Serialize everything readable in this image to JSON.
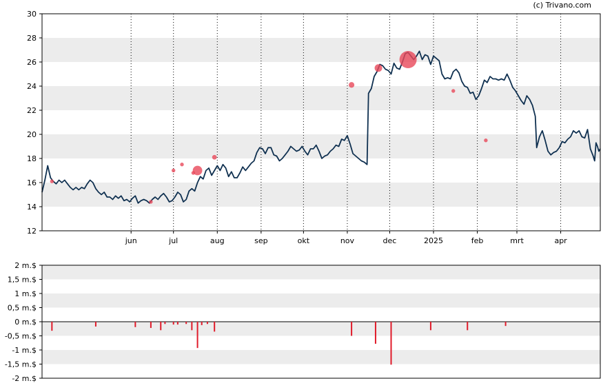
{
  "credit": "(c) Trivano.com",
  "colors": {
    "price_line": "#0f3050",
    "band": "#ececec",
    "insider_marker": "#e8495a",
    "volume_bar": "#e01b2a",
    "grid": "#000000"
  },
  "chart_data": [
    {
      "type": "line",
      "name": "price",
      "y_ticks": [
        "12",
        "14",
        "16",
        "18",
        "20",
        "22",
        "24",
        "26",
        "28",
        "30"
      ],
      "ylim": [
        12,
        30
      ],
      "x_tick_labels": [
        {
          "label": "jun",
          "day": 49
        },
        {
          "label": "jul",
          "day": 79
        },
        {
          "label": "aug",
          "day": 110
        },
        {
          "label": "sep",
          "day": 141
        },
        {
          "label": "okt",
          "day": 171
        },
        {
          "label": "nov",
          "day": 202
        },
        {
          "label": "dec",
          "day": 232
        },
        {
          "label": "2025",
          "day": 263
        },
        {
          "label": "feb",
          "day": 294
        },
        {
          "label": "mrt",
          "day": 322
        },
        {
          "label": "apr",
          "day": 353
        }
      ],
      "xlim": [
        -14,
        381
      ],
      "grid_x": true,
      "bands": [
        [
          14,
          16
        ],
        [
          18,
          20
        ],
        [
          22,
          24
        ],
        [
          26,
          28
        ]
      ],
      "series": [
        {
          "points": [
            [
              -14,
              15.2
            ],
            [
              -12,
              16.2
            ],
            [
              -10,
              17.4
            ],
            [
              -8,
              16.4
            ],
            [
              -6,
              16.1
            ],
            [
              -4,
              15.9
            ],
            [
              -2,
              16.2
            ],
            [
              0,
              16.0
            ],
            [
              2,
              16.2
            ],
            [
              4,
              15.9
            ],
            [
              6,
              15.6
            ],
            [
              8,
              15.4
            ],
            [
              10,
              15.6
            ],
            [
              12,
              15.4
            ],
            [
              14,
              15.6
            ],
            [
              16,
              15.5
            ],
            [
              18,
              15.9
            ],
            [
              20,
              16.2
            ],
            [
              22,
              16.0
            ],
            [
              24,
              15.5
            ],
            [
              26,
              15.2
            ],
            [
              28,
              15.0
            ],
            [
              30,
              15.2
            ],
            [
              32,
              14.8
            ],
            [
              34,
              14.8
            ],
            [
              36,
              14.6
            ],
            [
              38,
              14.9
            ],
            [
              40,
              14.7
            ],
            [
              42,
              14.9
            ],
            [
              44,
              14.5
            ],
            [
              46,
              14.6
            ],
            [
              48,
              14.4
            ],
            [
              50,
              14.7
            ],
            [
              52,
              14.9
            ],
            [
              54,
              14.3
            ],
            [
              56,
              14.5
            ],
            [
              58,
              14.6
            ],
            [
              60,
              14.5
            ],
            [
              62,
              14.3
            ],
            [
              64,
              14.6
            ],
            [
              66,
              14.8
            ],
            [
              68,
              14.6
            ],
            [
              70,
              14.9
            ],
            [
              72,
              15.1
            ],
            [
              74,
              14.8
            ],
            [
              76,
              14.4
            ],
            [
              78,
              14.5
            ],
            [
              80,
              14.8
            ],
            [
              82,
              15.2
            ],
            [
              84,
              15.0
            ],
            [
              86,
              14.4
            ],
            [
              88,
              14.6
            ],
            [
              90,
              15.3
            ],
            [
              92,
              15.5
            ],
            [
              94,
              15.3
            ],
            [
              96,
              16.0
            ],
            [
              98,
              16.5
            ],
            [
              100,
              16.3
            ],
            [
              102,
              17.0
            ],
            [
              104,
              17.2
            ],
            [
              106,
              16.6
            ],
            [
              108,
              17.0
            ],
            [
              110,
              17.4
            ],
            [
              112,
              17.0
            ],
            [
              114,
              17.5
            ],
            [
              116,
              17.2
            ],
            [
              118,
              16.5
            ],
            [
              120,
              16.9
            ],
            [
              122,
              16.4
            ],
            [
              124,
              16.4
            ],
            [
              126,
              16.8
            ],
            [
              128,
              17.3
            ],
            [
              130,
              17.0
            ],
            [
              132,
              17.3
            ],
            [
              134,
              17.6
            ],
            [
              136,
              17.8
            ],
            [
              138,
              18.5
            ],
            [
              140,
              18.9
            ],
            [
              142,
              18.8
            ],
            [
              144,
              18.4
            ],
            [
              146,
              18.9
            ],
            [
              148,
              18.9
            ],
            [
              150,
              18.3
            ],
            [
              152,
              18.2
            ],
            [
              154,
              17.8
            ],
            [
              156,
              18.0
            ],
            [
              158,
              18.3
            ],
            [
              160,
              18.6
            ],
            [
              162,
              19.0
            ],
            [
              164,
              18.8
            ],
            [
              166,
              18.6
            ],
            [
              168,
              18.7
            ],
            [
              170,
              19.0
            ],
            [
              172,
              18.6
            ],
            [
              174,
              18.3
            ],
            [
              176,
              18.8
            ],
            [
              178,
              18.8
            ],
            [
              180,
              19.1
            ],
            [
              182,
              18.6
            ],
            [
              184,
              18.0
            ],
            [
              186,
              18.2
            ],
            [
              188,
              18.3
            ],
            [
              190,
              18.6
            ],
            [
              192,
              18.8
            ],
            [
              194,
              19.1
            ],
            [
              196,
              19.0
            ],
            [
              198,
              19.6
            ],
            [
              200,
              19.5
            ],
            [
              202,
              19.9
            ],
            [
              204,
              19.2
            ],
            [
              206,
              18.4
            ],
            [
              208,
              18.2
            ],
            [
              210,
              18.0
            ],
            [
              212,
              17.8
            ],
            [
              214,
              17.7
            ],
            [
              216,
              17.5
            ],
            [
              217,
              23.4
            ],
            [
              219,
              23.8
            ],
            [
              221,
              24.8
            ],
            [
              223,
              25.2
            ],
            [
              225,
              25.8
            ],
            [
              227,
              25.7
            ],
            [
              229,
              25.4
            ],
            [
              231,
              25.3
            ],
            [
              233,
              25.0
            ],
            [
              235,
              25.9
            ],
            [
              237,
              25.5
            ],
            [
              239,
              25.4
            ],
            [
              241,
              26.0
            ],
            [
              243,
              26.7
            ],
            [
              245,
              26.8
            ],
            [
              247,
              26.5
            ],
            [
              249,
              26.2
            ],
            [
              251,
              26.5
            ],
            [
              253,
              26.9
            ],
            [
              255,
              26.2
            ],
            [
              257,
              26.6
            ],
            [
              259,
              26.5
            ],
            [
              261,
              25.8
            ],
            [
              263,
              26.5
            ],
            [
              265,
              26.3
            ],
            [
              267,
              26.1
            ],
            [
              269,
              25.0
            ],
            [
              271,
              24.6
            ],
            [
              273,
              24.7
            ],
            [
              275,
              24.6
            ],
            [
              277,
              25.2
            ],
            [
              279,
              25.4
            ],
            [
              281,
              25.1
            ],
            [
              283,
              24.4
            ],
            [
              285,
              24.0
            ],
            [
              287,
              23.9
            ],
            [
              289,
              23.4
            ],
            [
              291,
              23.5
            ],
            [
              293,
              22.9
            ],
            [
              295,
              23.2
            ],
            [
              297,
              23.8
            ],
            [
              299,
              24.5
            ],
            [
              301,
              24.3
            ],
            [
              303,
              24.8
            ],
            [
              305,
              24.6
            ],
            [
              307,
              24.6
            ],
            [
              309,
              24.5
            ],
            [
              311,
              24.6
            ],
            [
              313,
              24.5
            ],
            [
              315,
              25.0
            ],
            [
              317,
              24.5
            ],
            [
              319,
              23.9
            ],
            [
              321,
              23.6
            ],
            [
              323,
              23.2
            ],
            [
              325,
              22.8
            ],
            [
              327,
              22.5
            ],
            [
              329,
              23.2
            ],
            [
              331,
              22.9
            ],
            [
              333,
              22.4
            ],
            [
              335,
              21.5
            ],
            [
              336,
              18.9
            ],
            [
              338,
              19.8
            ],
            [
              340,
              20.3
            ],
            [
              342,
              19.5
            ],
            [
              344,
              18.6
            ],
            [
              346,
              18.3
            ],
            [
              348,
              18.5
            ],
            [
              350,
              18.6
            ],
            [
              352,
              18.9
            ],
            [
              354,
              19.4
            ],
            [
              356,
              19.3
            ],
            [
              358,
              19.6
            ],
            [
              360,
              19.8
            ],
            [
              362,
              20.3
            ],
            [
              364,
              20.1
            ],
            [
              366,
              20.3
            ],
            [
              368,
              19.8
            ],
            [
              370,
              19.7
            ],
            [
              372,
              20.4
            ],
            [
              374,
              18.8
            ],
            [
              376,
              18.2
            ],
            [
              377,
              17.8
            ],
            [
              378,
              19.3
            ],
            [
              379,
              19.0
            ],
            [
              380,
              18.6
            ],
            [
              381,
              18.8
            ]
          ]
        }
      ],
      "markers": [
        {
          "x": -7,
          "y": 16.1,
          "size": 1
        },
        {
          "x": 63,
          "y": 14.4,
          "size": 1
        },
        {
          "x": 79,
          "y": 17.0,
          "size": 1
        },
        {
          "x": 85,
          "y": 17.5,
          "size": 1
        },
        {
          "x": 93,
          "y": 16.8,
          "size": 1
        },
        {
          "x": 96,
          "y": 17.0,
          "size": 4
        },
        {
          "x": 108,
          "y": 18.1,
          "size": 1.5
        },
        {
          "x": 205,
          "y": 24.1,
          "size": 2
        },
        {
          "x": 224,
          "y": 25.5,
          "size": 3
        },
        {
          "x": 245,
          "y": 26.2,
          "size": 8
        },
        {
          "x": 277,
          "y": 23.6,
          "size": 1
        },
        {
          "x": 300,
          "y": 19.5,
          "size": 1
        }
      ]
    },
    {
      "type": "bar",
      "name": "insider-volume",
      "y_ticks": [
        "-2 m.$",
        "-1,5 m.$",
        "-1 m.$",
        "-0,5 m.$",
        "0 m.$",
        "0,5 m.$",
        "1 m.$",
        "1,5 m.$",
        "2 m.$"
      ],
      "ylim": [
        -2,
        2
      ],
      "bands": [
        [
          -1.5,
          -1.0
        ],
        [
          -0.5,
          0.0
        ],
        [
          0.5,
          1.0
        ],
        [
          1.5,
          2.0
        ]
      ],
      "bars": [
        {
          "x": -7,
          "value": -0.32
        },
        {
          "x": 24,
          "value": -0.17
        },
        {
          "x": 52,
          "value": -0.19
        },
        {
          "x": 63,
          "value": -0.22
        },
        {
          "x": 70,
          "value": -0.3
        },
        {
          "x": 73,
          "value": -0.08
        },
        {
          "x": 79,
          "value": -0.1
        },
        {
          "x": 82,
          "value": -0.1
        },
        {
          "x": 88,
          "value": -0.08
        },
        {
          "x": 92,
          "value": -0.3
        },
        {
          "x": 96,
          "value": -0.93
        },
        {
          "x": 99,
          "value": -0.12
        },
        {
          "x": 103,
          "value": -0.08
        },
        {
          "x": 108,
          "value": -0.35
        },
        {
          "x": 205,
          "value": -0.5
        },
        {
          "x": 222,
          "value": -0.78
        },
        {
          "x": 233,
          "value": -1.52
        },
        {
          "x": 261,
          "value": -0.3
        },
        {
          "x": 287,
          "value": -0.3
        },
        {
          "x": 314,
          "value": -0.15
        }
      ]
    }
  ]
}
